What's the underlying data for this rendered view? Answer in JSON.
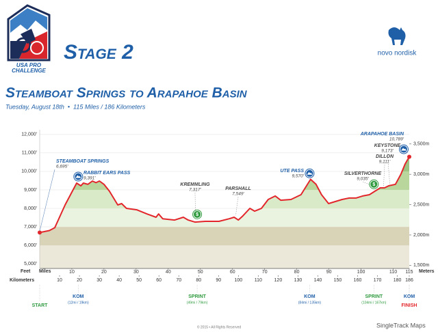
{
  "header": {
    "logo_lines": [
      "USA PRO",
      "CHALLENGE"
    ],
    "stage": "Stage 2",
    "sponsor": "novo nordisk"
  },
  "chart_data": {
    "type": "area",
    "title": "Steamboat Springs to Arapahoe Basin",
    "subtitle": "Tuesday, August 18th  •  115 Miles / 186 Kilometers",
    "y_label": "Feet",
    "x_label": "Miles",
    "x2_label": "Kilometers",
    "y2_label": "Meters",
    "color": "#e2262b",
    "grid": true,
    "x": [
      0,
      3,
      4.7,
      7.9,
      11.5,
      12.8,
      13.6,
      15,
      16.4,
      17.5,
      18.6,
      20,
      21.7,
      24.3,
      25.5,
      27,
      30.2,
      33.4,
      36.2,
      37,
      38.3,
      42,
      44.7,
      46.2,
      48.3,
      51.5,
      55.8,
      59,
      60.5,
      61.8,
      63.2,
      65.4,
      66.9,
      69,
      71.1,
      73.3,
      75,
      78.2,
      81.3,
      84.3,
      86,
      87.7,
      89.9,
      92,
      94.1,
      96.3,
      98.4,
      100.5,
      102.6,
      104.3,
      106,
      107.3,
      108.6,
      110.7,
      112.4,
      113.7,
      115
    ],
    "values": [
      6695,
      6800,
      6960,
      8185,
      9370,
      9220,
      9370,
      9300,
      9480,
      9390,
      9480,
      9300,
      8930,
      8185,
      8260,
      8000,
      7925,
      7700,
      7520,
      7700,
      7440,
      7370,
      7520,
      7370,
      7260,
      7300,
      7300,
      7440,
      7520,
      7370,
      7590,
      8000,
      7850,
      8000,
      8480,
      8670,
      8440,
      8480,
      8740,
      9570,
      9300,
      8740,
      8260,
      8370,
      8480,
      8560,
      8560,
      8670,
      8740,
      8930,
      9110,
      9110,
      9220,
      9300,
      9850,
      10400,
      10789
    ],
    "xlim": [
      0,
      115
    ],
    "xticks": [
      10,
      20,
      30,
      40,
      50,
      60,
      70,
      80,
      90,
      100,
      110,
      115
    ],
    "x2lim": [
      0,
      186
    ],
    "x2ticks": [
      10,
      20,
      30,
      40,
      50,
      60,
      70,
      80,
      90,
      100,
      110,
      120,
      130,
      140,
      150,
      160,
      170,
      180,
      186
    ],
    "ylim": [
      4750,
      12250
    ],
    "yticks": [
      {
        "value": 5000,
        "label": "5,000'"
      },
      {
        "value": 6000,
        "label": "6,000'"
      },
      {
        "value": 7000,
        "label": "7,000'"
      },
      {
        "value": 8000,
        "label": "8,000'"
      },
      {
        "value": 9000,
        "label": "9,000'"
      },
      {
        "value": 10000,
        "label": "10,000'"
      },
      {
        "value": 11000,
        "label": "11,000'"
      },
      {
        "value": 12000,
        "label": "12,000'"
      }
    ],
    "y2lim": [
      1447.8,
      3733.8
    ],
    "y2ticks": [
      {
        "value": 1500,
        "label": "1,500m"
      },
      {
        "value": 2000,
        "label": "2,000m"
      },
      {
        "value": 2500,
        "label": "2,500m"
      },
      {
        "value": 3000,
        "label": "3,000m"
      },
      {
        "value": 3500,
        "label": "3,500m"
      }
    ],
    "places": [
      {
        "name": "Steamboat Springs",
        "label": "6,695'",
        "x": 0,
        "value": 6695
      },
      {
        "name": "Rabbit Ears Pass",
        "label": "9,391'",
        "x": 12,
        "value": 9391
      },
      {
        "name": "Kremmling",
        "label": "7,317'",
        "x": 48.5,
        "value": 7317
      },
      {
        "name": "Parshall",
        "label": "7,549'",
        "x": 61,
        "value": 7549
      },
      {
        "name": "Ute Pass",
        "label": "9,570'",
        "x": 84,
        "value": 9570
      },
      {
        "name": "Silverthorne",
        "label": "9,035'",
        "x": 105,
        "value": 9035
      },
      {
        "name": "Dillon",
        "label": "9,111'",
        "x": 107,
        "value": 9111
      },
      {
        "name": "Keystone",
        "label": "9,173'",
        "x": 109,
        "value": 9173
      },
      {
        "name": "Arapahoe Basin",
        "label": "10,789'",
        "x": 115,
        "value": 10789
      }
    ],
    "markers": [
      {
        "label": "START",
        "x": 0,
        "color": "#2e9a3e"
      },
      {
        "label": "KOM",
        "detail": "(12mi / 19km)",
        "x": 12,
        "color": "#1f5fa8",
        "badge": "#1f5fa8"
      },
      {
        "label": "SPRINT",
        "detail": "(49mi / 79km)",
        "x": 49,
        "color": "#2e9a3e",
        "badge": "#2e9a3e",
        "icon": "$"
      },
      {
        "label": "KOM",
        "detail": "(84mi / 135km)",
        "x": 84,
        "color": "#1f5fa8",
        "badge": "#1f5fa8"
      },
      {
        "label": "SPRINT",
        "detail": "(104mi / 167km)",
        "x": 104,
        "color": "#2e9a3e",
        "badge": "#2e9a3e",
        "icon": "$"
      },
      {
        "label": "KOM",
        "x": 115,
        "color": "#1f5fa8",
        "badge": "#1f5fa8"
      },
      {
        "label": "FINISH",
        "x": 115,
        "color": "#e2262b"
      }
    ]
  },
  "footer": {
    "copyright": "© 2015 • All Rights Reserved",
    "credit": "SingleTrack Maps"
  }
}
